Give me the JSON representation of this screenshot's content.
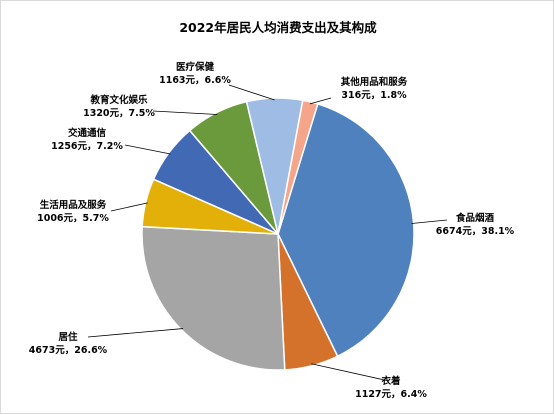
{
  "chart_data": {
    "type": "pie",
    "title": "2022年居民人均消费支出及其构成",
    "slices": [
      {
        "label": "食品烟酒",
        "value": 6674,
        "percent": "38.1%",
        "color": "#4e81bd"
      },
      {
        "label": "衣着",
        "value": 1127,
        "percent": "6.4%",
        "color": "#d4712b"
      },
      {
        "label": "居住",
        "value": 4673,
        "percent": "26.6%",
        "color": "#a5a5a5"
      },
      {
        "label": "生活用品及服务",
        "value": 1006,
        "percent": "5.7%",
        "color": "#e3b009"
      },
      {
        "label": "交通通信",
        "value": 1256,
        "percent": "7.2%",
        "color": "#4169b4"
      },
      {
        "label": "教育文化娱乐",
        "value": 1320,
        "percent": "7.5%",
        "color": "#6a9a3c"
      },
      {
        "label": "医疗保健",
        "value": 1163,
        "percent": "6.6%",
        "color": "#9fbde4"
      },
      {
        "label": "其他用品和服务",
        "value": 316,
        "percent": "1.8%",
        "color": "#f4a58a"
      }
    ],
    "value_suffix": "元",
    "separator": "，",
    "start_angle_deg": 17,
    "direction": "clockwise",
    "legend": "none",
    "data_labels": "outside-with-leader-lines"
  }
}
